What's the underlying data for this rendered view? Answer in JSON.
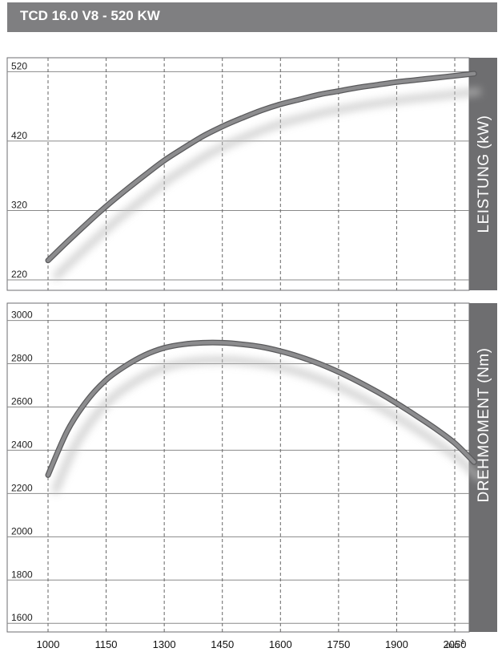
{
  "title": "TCD 16.0 V8 - 520 KW",
  "colors": {
    "title_bg": "#7f7f81",
    "side_panel": "#6e6e70",
    "curve": "#7a7a7c",
    "grid": "#8a8a8a"
  },
  "chart_data": [
    {
      "type": "line",
      "ylabel": "LEISTUNG (kW)",
      "x_ticks": [
        "1000",
        "1150",
        "1300",
        "1450",
        "1600",
        "1750",
        "1900",
        "2050"
      ],
      "xlim": [
        1000,
        2100
      ],
      "y_ticks": [
        "520",
        "420",
        "320",
        "220"
      ],
      "ylim": [
        205,
        540
      ],
      "grid": true,
      "series": [
        {
          "x": [
            1000,
            1050,
            1100,
            1150,
            1200,
            1250,
            1300,
            1350,
            1400,
            1450,
            1500,
            1550,
            1600,
            1650,
            1700,
            1750,
            1800,
            1850,
            1900,
            1950,
            2000,
            2050,
            2100
          ],
          "y": [
            248,
            275,
            301,
            326,
            349,
            371,
            392,
            410,
            427,
            441,
            453,
            464,
            473,
            480,
            487,
            492,
            497,
            501,
            505,
            508,
            511,
            514,
            517
          ]
        }
      ]
    },
    {
      "type": "line",
      "ylabel": "DREHMOMENT (Nm)",
      "x_ticks": [
        "1000",
        "1150",
        "1300",
        "1450",
        "1600",
        "1750",
        "1900",
        "2050"
      ],
      "xlim": [
        1000,
        2100
      ],
      "y_ticks": [
        "3000",
        "2800",
        "2600",
        "2400",
        "2200",
        "2000",
        "1800",
        "1600"
      ],
      "ylim": [
        1560,
        3080
      ],
      "grid": true,
      "series": [
        {
          "x": [
            1000,
            1050,
            1100,
            1150,
            1200,
            1250,
            1300,
            1350,
            1400,
            1450,
            1500,
            1550,
            1600,
            1650,
            1700,
            1750,
            1800,
            1850,
            1900,
            1950,
            2000,
            2050,
            2100
          ],
          "y": [
            2285,
            2490,
            2628,
            2725,
            2790,
            2840,
            2873,
            2890,
            2897,
            2897,
            2890,
            2878,
            2858,
            2832,
            2800,
            2762,
            2718,
            2670,
            2617,
            2560,
            2500,
            2433,
            2345
          ]
        }
      ]
    }
  ],
  "x_unit": "min",
  "x_unit_exp": "-1"
}
